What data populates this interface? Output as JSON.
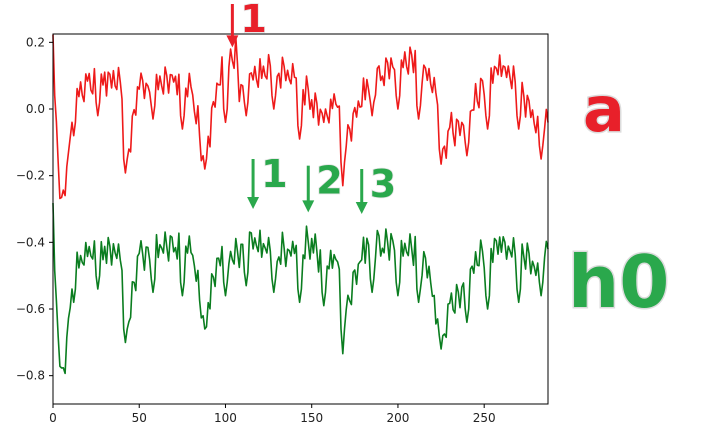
{
  "chart_data": {
    "type": "line",
    "xlim": [
      0,
      287
    ],
    "ylim": [
      -0.885,
      0.225
    ],
    "x_ticks": [
      0,
      50,
      100,
      150,
      200,
      250
    ],
    "y_ticks": [
      0.2,
      0.0,
      -0.2,
      -0.4,
      -0.6,
      -0.8
    ],
    "x_tick_labels": [
      "0",
      "50",
      "100",
      "150",
      "200",
      "250"
    ],
    "y_tick_labels": [
      "0.2",
      "0.0",
      "−0.2",
      "−0.4",
      "−0.6",
      "−0.8"
    ],
    "grid": false,
    "series": [
      {
        "name": "a",
        "color": "#ee1a1a",
        "keypoints": [
          [
            0,
            0.16
          ],
          [
            2,
            -0.09
          ],
          [
            5,
            -0.32
          ],
          [
            8,
            -0.2
          ],
          [
            12,
            0.02
          ],
          [
            20,
            0.05
          ],
          [
            30,
            0.07
          ],
          [
            40,
            0.06
          ],
          [
            42,
            -0.19
          ],
          [
            50,
            0.05
          ],
          [
            60,
            0.05
          ],
          [
            70,
            0.08
          ],
          [
            80,
            0.04
          ],
          [
            88,
            -0.18
          ],
          [
            95,
            0.05
          ],
          [
            103,
            0.13
          ],
          [
            106,
            0.16
          ],
          [
            108,
            0.04
          ],
          [
            115,
            0.08
          ],
          [
            125,
            0.1
          ],
          [
            135,
            0.09
          ],
          [
            145,
            0.05
          ],
          [
            150,
            0.0
          ],
          [
            157,
            -0.04
          ],
          [
            165,
            0.02
          ],
          [
            168,
            -0.2
          ],
          [
            172,
            -0.08
          ],
          [
            180,
            0.03
          ],
          [
            190,
            0.09
          ],
          [
            200,
            0.12
          ],
          [
            210,
            0.13
          ],
          [
            218,
            0.08
          ],
          [
            222,
            0.05
          ],
          [
            225,
            -0.16
          ],
          [
            230,
            -0.09
          ],
          [
            240,
            -0.06
          ],
          [
            247,
            0.03
          ],
          [
            255,
            0.1
          ],
          [
            265,
            0.09
          ],
          [
            270,
            0.03
          ],
          [
            275,
            0.0
          ],
          [
            280,
            -0.06
          ],
          [
            287,
            -0.06
          ]
        ],
        "dips": [
          [
            12,
            -0.08
          ],
          [
            26,
            -0.02
          ],
          [
            42,
            -0.19
          ],
          [
            58,
            -0.03
          ],
          [
            75,
            -0.06
          ],
          [
            88,
            -0.18
          ],
          [
            100,
            -0.04
          ],
          [
            112,
            -0.02
          ],
          [
            128,
            0.0
          ],
          [
            143,
            -0.09
          ],
          [
            157,
            -0.04
          ],
          [
            168,
            -0.2
          ],
          [
            185,
            -0.02
          ],
          [
            200,
            0.0
          ],
          [
            212,
            -0.03
          ],
          [
            225,
            -0.16
          ],
          [
            240,
            -0.14
          ],
          [
            252,
            -0.06
          ],
          [
            270,
            -0.06
          ],
          [
            283,
            -0.15
          ]
        ]
      },
      {
        "name": "h0",
        "color": "#0a7d1f",
        "keypoints": [
          [
            0,
            -0.36
          ],
          [
            2,
            -0.61
          ],
          [
            5,
            -0.84
          ],
          [
            8,
            -0.72
          ],
          [
            12,
            -0.48
          ],
          [
            20,
            -0.46
          ],
          [
            30,
            -0.44
          ],
          [
            40,
            -0.46
          ],
          [
            42,
            -0.7
          ],
          [
            50,
            -0.46
          ],
          [
            60,
            -0.44
          ],
          [
            70,
            -0.42
          ],
          [
            80,
            -0.44
          ],
          [
            88,
            -0.66
          ],
          [
            95,
            -0.48
          ],
          [
            103,
            -0.46
          ],
          [
            110,
            -0.44
          ],
          [
            115,
            -0.41
          ],
          [
            125,
            -0.44
          ],
          [
            135,
            -0.45
          ],
          [
            145,
            -0.44
          ],
          [
            150,
            -0.42
          ],
          [
            157,
            -0.48
          ],
          [
            165,
            -0.46
          ],
          [
            168,
            -0.7
          ],
          [
            172,
            -0.58
          ],
          [
            180,
            -0.44
          ],
          [
            190,
            -0.42
          ],
          [
            200,
            -0.43
          ],
          [
            210,
            -0.44
          ],
          [
            218,
            -0.5
          ],
          [
            225,
            -0.72
          ],
          [
            230,
            -0.62
          ],
          [
            240,
            -0.54
          ],
          [
            247,
            -0.46
          ],
          [
            255,
            -0.43
          ],
          [
            265,
            -0.44
          ],
          [
            275,
            -0.46
          ],
          [
            280,
            -0.5
          ],
          [
            287,
            -0.43
          ]
        ],
        "dips": [
          [
            12,
            -0.58
          ],
          [
            26,
            -0.54
          ],
          [
            42,
            -0.7
          ],
          [
            58,
            -0.55
          ],
          [
            75,
            -0.56
          ],
          [
            88,
            -0.66
          ],
          [
            100,
            -0.56
          ],
          [
            112,
            -0.53
          ],
          [
            128,
            -0.55
          ],
          [
            143,
            -0.58
          ],
          [
            157,
            -0.59
          ],
          [
            168,
            -0.7
          ],
          [
            185,
            -0.55
          ],
          [
            200,
            -0.56
          ],
          [
            212,
            -0.58
          ],
          [
            225,
            -0.72
          ],
          [
            240,
            -0.64
          ],
          [
            252,
            -0.6
          ],
          [
            270,
            -0.58
          ],
          [
            283,
            -0.56
          ]
        ]
      }
    ],
    "annotations": [
      {
        "text": "1",
        "color": "#e8202a",
        "x": 104,
        "y_tip": 0.185,
        "y_tail": 0.315
      },
      {
        "text": "1",
        "color": "#2aa84c",
        "x": 116,
        "y_tip": -0.3,
        "y_tail": -0.15
      },
      {
        "text": "2",
        "color": "#2aa84c",
        "x": 148,
        "y_tip": -0.31,
        "y_tail": -0.17
      },
      {
        "text": "3",
        "color": "#2aa84c",
        "x": 179,
        "y_tip": -0.315,
        "y_tail": -0.18
      }
    ],
    "side_labels": [
      {
        "text": "a",
        "color": "#e8202a"
      },
      {
        "text": "h0",
        "color": "#2aa84c"
      }
    ]
  }
}
